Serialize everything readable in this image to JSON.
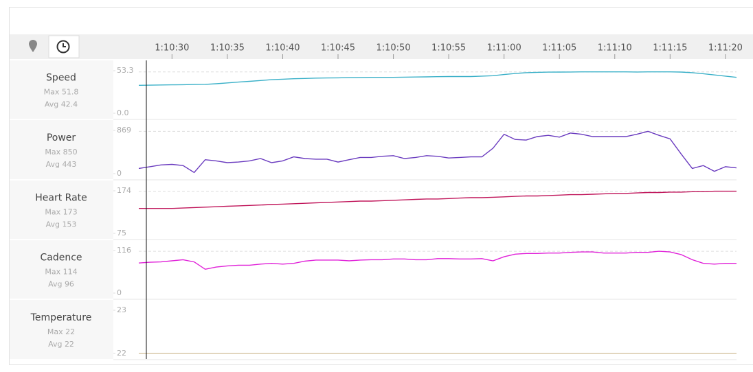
{
  "chart_data": {
    "type": "line",
    "x": [
      4227,
      4228,
      4229,
      4230,
      4231,
      4232,
      4233,
      4234,
      4235,
      4236,
      4237,
      4238,
      4239,
      4240,
      4241,
      4242,
      4243,
      4244,
      4245,
      4246,
      4247,
      4248,
      4249,
      4250,
      4251,
      4252,
      4253,
      4254,
      4255,
      4256,
      4257,
      4258,
      4259,
      4260,
      4261,
      4262,
      4263,
      4264,
      4265,
      4266,
      4267,
      4268,
      4269,
      4270,
      4271,
      4272,
      4273,
      4274,
      4275,
      4276,
      4277,
      4278,
      4279,
      4280,
      4281
    ],
    "xlim": [
      4227,
      4281
    ],
    "xticks": [
      {
        "value": 4230,
        "label": "1:10:30"
      },
      {
        "value": 4235,
        "label": "1:10:35"
      },
      {
        "value": 4240,
        "label": "1:10:40"
      },
      {
        "value": 4245,
        "label": "1:10:45"
      },
      {
        "value": 4250,
        "label": "1:10:50"
      },
      {
        "value": 4255,
        "label": "1:10:55"
      },
      {
        "value": 4260,
        "label": "1:11:00"
      },
      {
        "value": 4265,
        "label": "1:11:05"
      },
      {
        "value": 4270,
        "label": "1:11:10"
      },
      {
        "value": 4275,
        "label": "1:11:15"
      },
      {
        "value": 4280,
        "label": "1:11:20"
      }
    ],
    "panels": [
      {
        "name": "Speed",
        "color": "#3ab0c8",
        "stats": [
          {
            "label": "Max",
            "value": 51.8
          },
          {
            "label": "Avg",
            "value": 42.4
          }
        ],
        "ylim": [
          0,
          53.3
        ],
        "yticks": [
          {
            "value": 0,
            "label": "0.0"
          },
          53.3
        ],
        "values": [
          35,
          35.2,
          35.4,
          35.6,
          35.8,
          36,
          36.2,
          37,
          38,
          39,
          40,
          41,
          42,
          42.6,
          43.2,
          43.6,
          44,
          44.2,
          44.4,
          44.6,
          44.8,
          45,
          45,
          45,
          45.2,
          45.4,
          45.6,
          45.8,
          46,
          46,
          46,
          46.5,
          47,
          48.5,
          49.8,
          50.8,
          51.2,
          51.5,
          51.6,
          51.7,
          51.8,
          51.8,
          51.8,
          51.8,
          51.8,
          51.7,
          51.8,
          51.8,
          51.8,
          51.6,
          50.8,
          49.5,
          48,
          46.5,
          45
        ]
      },
      {
        "name": "Power",
        "color": "#6a3bbf",
        "stats": [
          {
            "label": "Max",
            "value": 850
          },
          {
            "label": "Avg",
            "value": 443
          }
        ],
        "ylim": [
          0,
          869
        ],
        "yticks": [
          0,
          869
        ],
        "values": [
          105,
          140,
          175,
          186,
          163,
          23,
          280,
          256,
          221,
          233,
          256,
          303,
          221,
          256,
          338,
          303,
          291,
          291,
          233,
          280,
          326,
          326,
          349,
          361,
          303,
          326,
          361,
          349,
          314,
          326,
          338,
          338,
          512,
          792,
          687,
          675,
          745,
          769,
          734,
          815,
          792,
          745,
          745,
          745,
          745,
          792,
          850,
          769,
          699,
          396,
          105,
          163,
          47,
          140,
          116
        ]
      },
      {
        "name": "Heart Rate",
        "color": "#c0155a",
        "stats": [
          {
            "label": "Max",
            "value": 173
          },
          {
            "label": "Avg",
            "value": 153
          }
        ],
        "ylim": [
          75,
          174
        ],
        "yticks": [
          75,
          174
        ],
        "values": [
          133,
          133,
          133,
          133,
          134,
          135,
          136,
          137,
          138,
          139,
          140,
          141,
          142,
          143,
          144,
          145,
          146,
          147,
          148,
          149,
          150,
          150,
          151,
          152,
          153,
          154,
          155,
          155,
          156,
          157,
          158,
          158,
          159,
          160,
          161,
          162,
          162,
          163,
          164,
          165,
          165,
          166,
          167,
          168,
          168,
          169,
          170,
          170,
          171,
          171,
          172,
          172,
          173,
          173,
          173
        ]
      },
      {
        "name": "Cadence",
        "color": "#e020d8",
        "stats": [
          {
            "label": "Max",
            "value": 114
          },
          {
            "label": "Avg",
            "value": 96
          }
        ],
        "ylim": [
          0,
          116
        ],
        "yticks": [
          0,
          116
        ],
        "values": [
          82,
          84,
          85,
          88,
          91,
          85,
          65,
          71,
          74,
          76,
          76,
          79,
          81,
          79,
          81,
          87,
          90,
          90,
          90,
          88,
          90,
          91,
          91,
          93,
          93,
          91,
          91,
          94,
          94,
          93,
          93,
          94,
          88,
          99,
          106,
          108,
          108,
          109,
          109,
          111,
          112,
          112,
          109,
          109,
          109,
          111,
          111,
          114,
          112,
          105,
          91,
          81,
          79,
          81,
          81
        ]
      },
      {
        "name": "Temperature",
        "color": "#d8c8a8",
        "stats": [
          {
            "label": "Max",
            "value": 22
          },
          {
            "label": "Avg",
            "value": 22
          }
        ],
        "ylim": [
          22,
          23
        ],
        "yticks": [
          22,
          23
        ],
        "values": [
          22,
          22,
          22,
          22,
          22,
          22,
          22,
          22,
          22,
          22,
          22,
          22,
          22,
          22,
          22,
          22,
          22,
          22,
          22,
          22,
          22,
          22,
          22,
          22,
          22,
          22,
          22,
          22,
          22,
          22,
          22,
          22,
          22,
          22,
          22,
          22,
          22,
          22,
          22,
          22,
          22,
          22,
          22,
          22,
          22,
          22,
          22,
          22,
          22,
          22,
          22,
          22,
          22,
          22,
          22
        ]
      }
    ]
  }
}
